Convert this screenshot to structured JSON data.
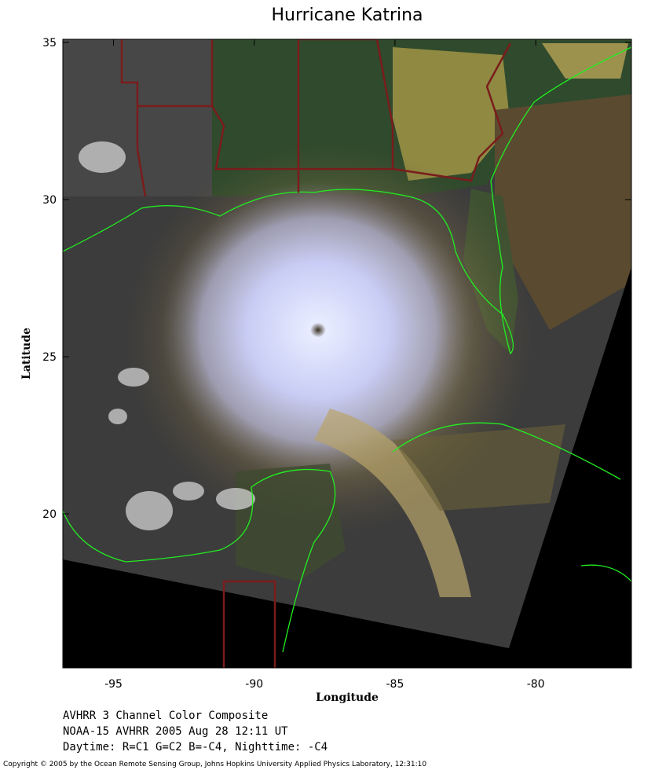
{
  "map": {
    "title": "Hurricane Katrina",
    "xlabel": "Longitude",
    "ylabel": "Latitude",
    "xlim": [
      -96.8,
      -76.6
    ],
    "ylim": [
      15.1,
      35.1
    ],
    "xticks": [
      -95,
      -90,
      -85,
      -80
    ],
    "yticks": [
      20,
      25,
      30,
      35
    ],
    "caption": [
      "AVHRR 3 Channel Color Composite",
      "NOAA-15 AVHRR 2005 Aug 28 12:11 UT",
      "Daytime: R=C1 G=C2 B=-C4, Nighttime: -C4"
    ],
    "copyright": "Copyright © 2005 by the Ocean Remote Sensing Group, Johns Hopkins University Applied Physics Laboratory, 12:31:10"
  }
}
